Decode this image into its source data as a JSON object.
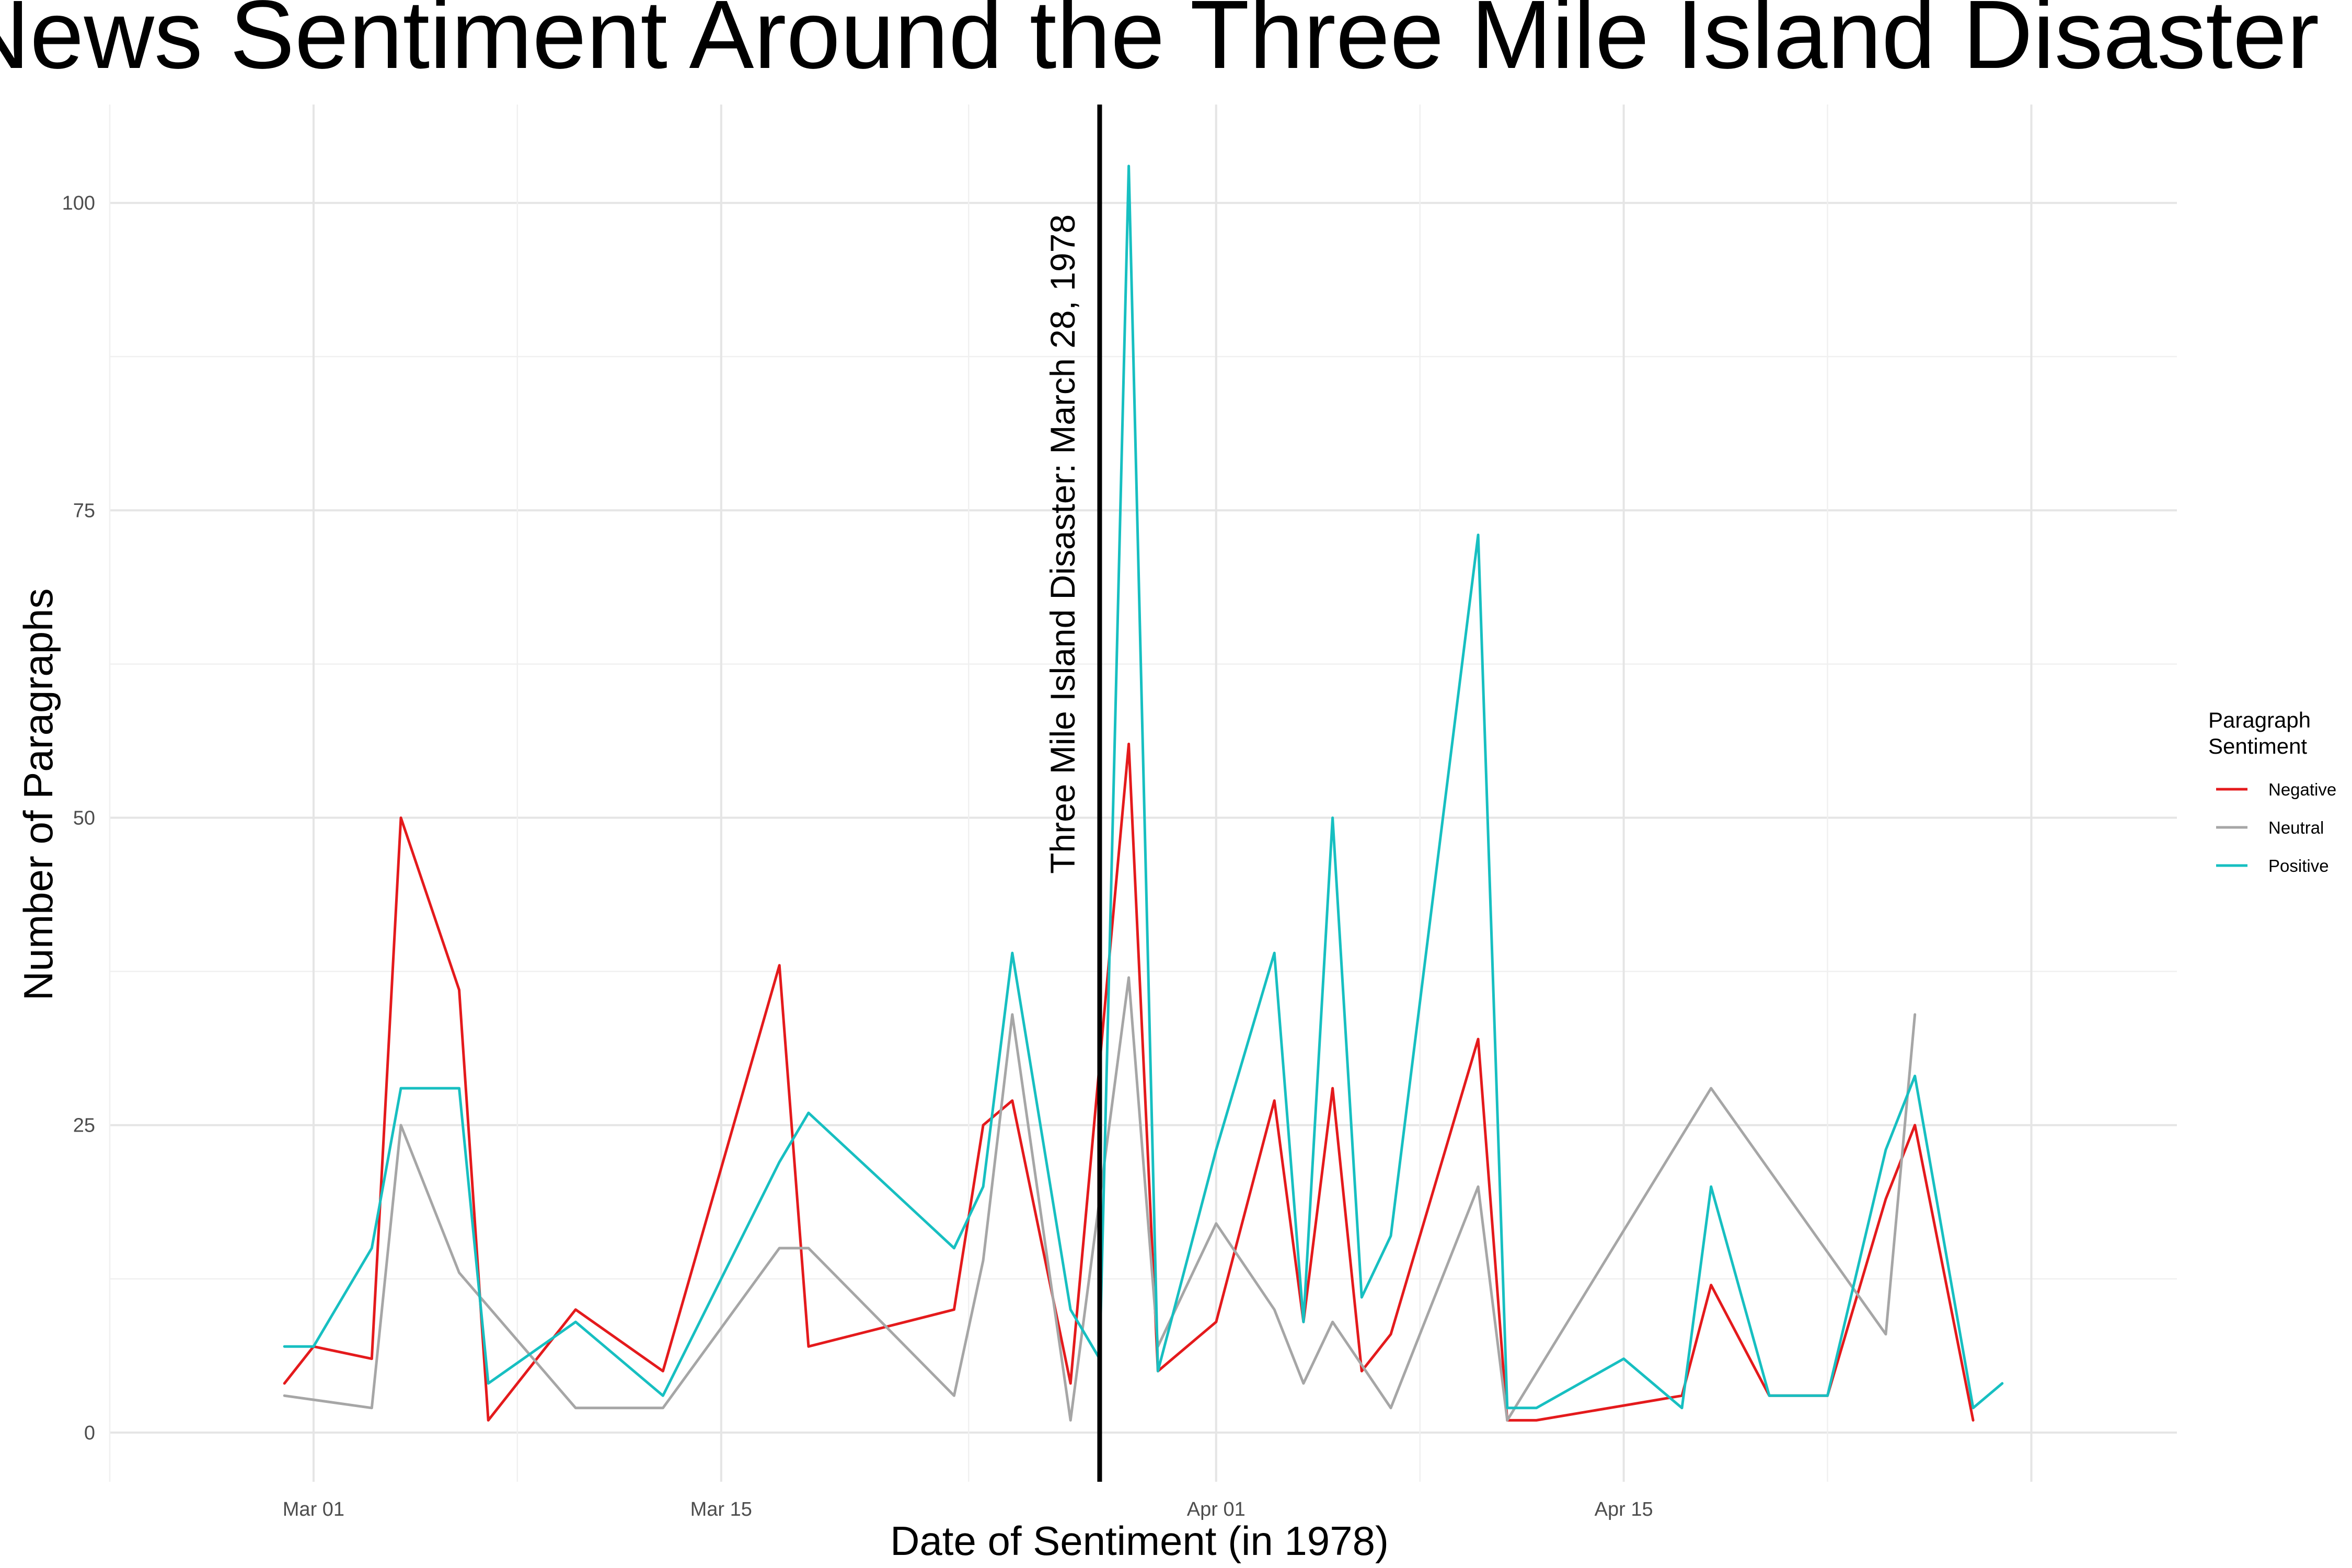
{
  "chart_data": {
    "type": "line",
    "title": "News Sentiment Around the Three Mile Island Disaster",
    "xlabel": "Date of Sentiment (in 1978)",
    "ylabel": "Number of Paragraphs",
    "x_axis": {
      "type": "date",
      "range": [
        "1978-02-22",
        "1978-05-04"
      ],
      "ticks": [
        {
          "date": "1978-03-01",
          "label": "Mar 01"
        },
        {
          "date": "1978-03-15",
          "label": "Mar 15"
        },
        {
          "date": "1978-04-01",
          "label": "Apr 01"
        },
        {
          "date": "1978-04-15",
          "label": "Apr 15"
        }
      ]
    },
    "y_axis": {
      "range": [
        -4,
        108
      ],
      "ticks": [
        0,
        25,
        50,
        75,
        100
      ]
    },
    "grid": true,
    "legend": {
      "title": "Paragraph\nSentiment",
      "position": "right"
    },
    "annotation": {
      "date": "1978-03-28",
      "label": "Three Mile Island Disaster: March 28, 1978"
    },
    "series": [
      {
        "name": "Negative",
        "color": "#e41a1c",
        "points": [
          [
            "1978-02-28",
            4
          ],
          [
            "1978-03-01",
            7
          ],
          [
            "1978-03-03",
            6
          ],
          [
            "1978-03-04",
            50
          ],
          [
            "1978-03-06",
            36
          ],
          [
            "1978-03-07",
            1
          ],
          [
            "1978-03-10",
            10
          ],
          [
            "1978-03-13",
            5
          ],
          [
            "1978-03-17",
            38
          ],
          [
            "1978-03-18",
            7
          ],
          [
            "1978-03-23",
            10
          ],
          [
            "1978-03-24",
            25
          ],
          [
            "1978-03-25",
            27
          ],
          [
            "1978-03-27",
            4
          ],
          [
            "1978-03-29",
            56
          ],
          [
            "1978-03-30",
            5
          ],
          [
            "1978-04-01",
            9
          ],
          [
            "1978-04-03",
            27
          ],
          [
            "1978-04-04",
            9
          ],
          [
            "1978-04-05",
            28
          ],
          [
            "1978-04-06",
            5
          ],
          [
            "1978-04-07",
            8
          ],
          [
            "1978-04-10",
            32
          ],
          [
            "1978-04-11",
            1
          ],
          [
            "1978-04-12",
            1
          ],
          [
            "1978-04-17",
            3
          ],
          [
            "1978-04-18",
            12
          ],
          [
            "1978-04-20",
            3
          ],
          [
            "1978-04-22",
            3
          ],
          [
            "1978-04-24",
            19
          ],
          [
            "1978-04-25",
            25
          ],
          [
            "1978-04-27",
            1
          ]
        ]
      },
      {
        "name": "Neutral",
        "color": "#a6a6a6",
        "points": [
          [
            "1978-02-28",
            3
          ],
          [
            "1978-03-03",
            2
          ],
          [
            "1978-03-04",
            25
          ],
          [
            "1978-03-06",
            13
          ],
          [
            "1978-03-10",
            2
          ],
          [
            "1978-03-13",
            2
          ],
          [
            "1978-03-17",
            15
          ],
          [
            "1978-03-18",
            15
          ],
          [
            "1978-03-23",
            3
          ],
          [
            "1978-03-24",
            14
          ],
          [
            "1978-03-25",
            34
          ],
          [
            "1978-03-27",
            1
          ],
          [
            "1978-03-29",
            37
          ],
          [
            "1978-03-30",
            7
          ],
          [
            "1978-04-01",
            17
          ],
          [
            "1978-04-03",
            10
          ],
          [
            "1978-04-04",
            4
          ],
          [
            "1978-04-05",
            9
          ],
          [
            "1978-04-07",
            2
          ],
          [
            "1978-04-10",
            20
          ],
          [
            "1978-04-11",
            1
          ],
          [
            "1978-04-18",
            28
          ],
          [
            "1978-04-24",
            8
          ],
          [
            "1978-04-25",
            34
          ]
        ]
      },
      {
        "name": "Positive",
        "color": "#17bfc1",
        "points": [
          [
            "1978-02-28",
            7
          ],
          [
            "1978-03-01",
            7
          ],
          [
            "1978-03-03",
            15
          ],
          [
            "1978-03-04",
            28
          ],
          [
            "1978-03-06",
            28
          ],
          [
            "1978-03-07",
            4
          ],
          [
            "1978-03-10",
            9
          ],
          [
            "1978-03-13",
            3
          ],
          [
            "1978-03-17",
            22
          ],
          [
            "1978-03-18",
            26
          ],
          [
            "1978-03-23",
            15
          ],
          [
            "1978-03-24",
            20
          ],
          [
            "1978-03-25",
            39
          ],
          [
            "1978-03-27",
            10
          ],
          [
            "1978-03-28",
            6
          ],
          [
            "1978-03-29",
            103
          ],
          [
            "1978-03-30",
            5
          ],
          [
            "1978-04-01",
            23
          ],
          [
            "1978-04-03",
            39
          ],
          [
            "1978-04-04",
            9
          ],
          [
            "1978-04-05",
            50
          ],
          [
            "1978-04-06",
            11
          ],
          [
            "1978-04-07",
            16
          ],
          [
            "1978-04-10",
            73
          ],
          [
            "1978-04-11",
            2
          ],
          [
            "1978-04-12",
            2
          ],
          [
            "1978-04-15",
            6
          ],
          [
            "1978-04-17",
            2
          ],
          [
            "1978-04-18",
            20
          ],
          [
            "1978-04-20",
            3
          ],
          [
            "1978-04-22",
            3
          ],
          [
            "1978-04-24",
            23
          ],
          [
            "1978-04-25",
            29
          ],
          [
            "1978-04-27",
            2
          ],
          [
            "1978-04-28",
            4
          ]
        ]
      }
    ]
  }
}
